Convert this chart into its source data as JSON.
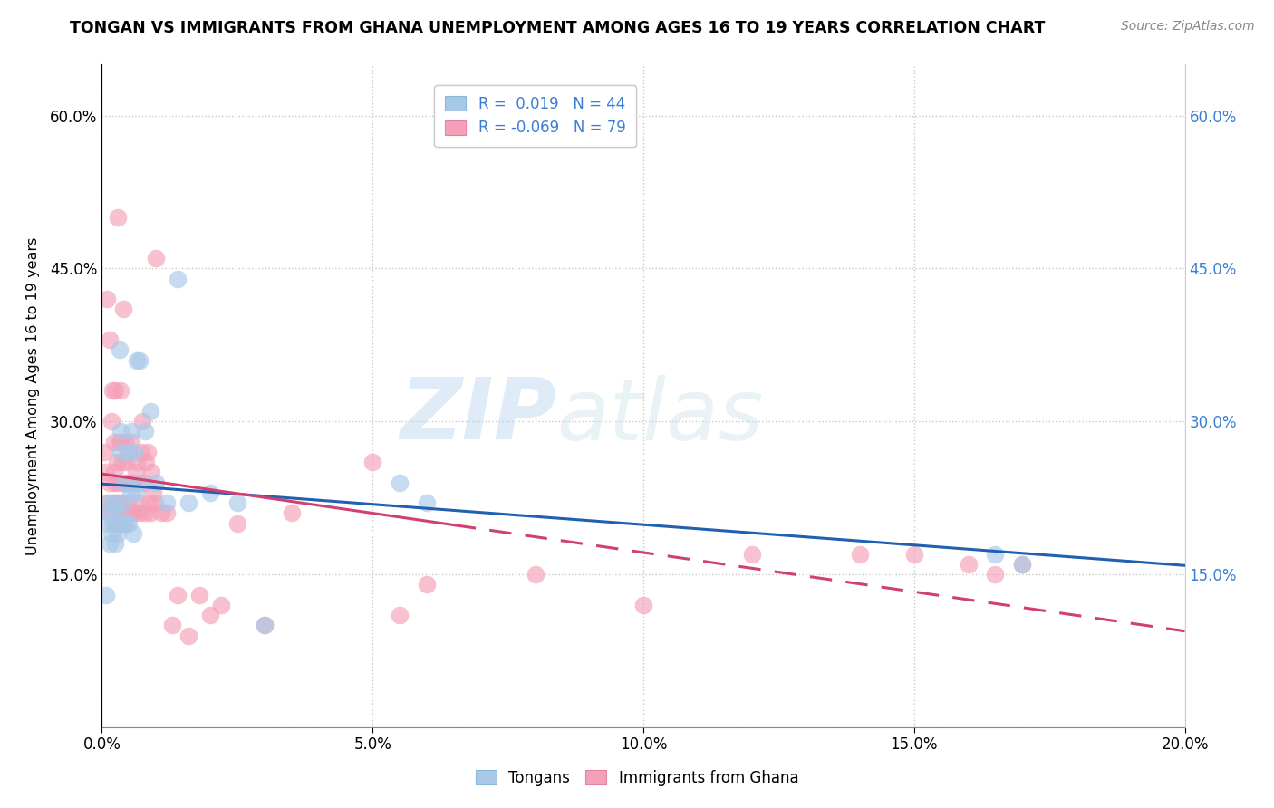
{
  "title": "TONGAN VS IMMIGRANTS FROM GHANA UNEMPLOYMENT AMONG AGES 16 TO 19 YEARS CORRELATION CHART",
  "source": "Source: ZipAtlas.com",
  "ylabel": "Unemployment Among Ages 16 to 19 years",
  "xlim": [
    0.0,
    0.2
  ],
  "ylim": [
    0.0,
    0.65
  ],
  "xticks": [
    0.0,
    0.05,
    0.1,
    0.15,
    0.2
  ],
  "xtick_labels": [
    "0.0%",
    "5.0%",
    "10.0%",
    "15.0%",
    "20.0%"
  ],
  "yticks_left": [
    0.15,
    0.3,
    0.45,
    0.6
  ],
  "ytick_labels_left": [
    "15.0%",
    "30.0%",
    "45.0%",
    "60.0%"
  ],
  "yticks_right": [
    0.15,
    0.3,
    0.45,
    0.6
  ],
  "ytick_labels_right": [
    "15.0%",
    "30.0%",
    "45.0%",
    "60.0%"
  ],
  "watermark_text": "ZIPatlas",
  "tongans_color": "#a8c8e8",
  "ghana_color": "#f4a0b8",
  "tongans_line_color": "#2060b0",
  "ghana_line_color": "#d04070",
  "background_color": "#ffffff",
  "grid_color": "#cccccc",
  "R_tongans": 0.019,
  "N_tongans": 44,
  "R_ghana": -0.069,
  "N_ghana": 79,
  "tongans_x": [
    0.0008,
    0.001,
    0.0012,
    0.0015,
    0.0015,
    0.0018,
    0.002,
    0.0022,
    0.0025,
    0.0025,
    0.0028,
    0.003,
    0.003,
    0.0032,
    0.0035,
    0.0035,
    0.0038,
    0.004,
    0.004,
    0.0042,
    0.0045,
    0.0048,
    0.005,
    0.0052,
    0.0055,
    0.0058,
    0.006,
    0.0062,
    0.0065,
    0.0068,
    0.007,
    0.008,
    0.009,
    0.01,
    0.012,
    0.014,
    0.016,
    0.02,
    0.025,
    0.03,
    0.055,
    0.06,
    0.165,
    0.17
  ],
  "tongans_y": [
    0.13,
    0.2,
    0.22,
    0.18,
    0.21,
    0.19,
    0.2,
    0.22,
    0.18,
    0.2,
    0.21,
    0.19,
    0.2,
    0.37,
    0.27,
    0.29,
    0.2,
    0.2,
    0.22,
    0.24,
    0.2,
    0.27,
    0.2,
    0.23,
    0.29,
    0.19,
    0.27,
    0.23,
    0.36,
    0.24,
    0.36,
    0.29,
    0.31,
    0.24,
    0.22,
    0.44,
    0.22,
    0.23,
    0.22,
    0.1,
    0.24,
    0.22,
    0.17,
    0.16
  ],
  "ghana_x": [
    0.0005,
    0.0008,
    0.001,
    0.001,
    0.0012,
    0.0015,
    0.0015,
    0.0018,
    0.0018,
    0.002,
    0.002,
    0.0022,
    0.0022,
    0.0025,
    0.0025,
    0.0025,
    0.0028,
    0.0028,
    0.003,
    0.003,
    0.0032,
    0.0032,
    0.0035,
    0.0035,
    0.0035,
    0.0038,
    0.0038,
    0.004,
    0.004,
    0.0042,
    0.0042,
    0.0045,
    0.0045,
    0.0048,
    0.005,
    0.005,
    0.0052,
    0.0055,
    0.0055,
    0.0058,
    0.006,
    0.0062,
    0.0065,
    0.0068,
    0.007,
    0.0072,
    0.0075,
    0.0078,
    0.008,
    0.0082,
    0.0085,
    0.0088,
    0.009,
    0.0092,
    0.0095,
    0.0098,
    0.01,
    0.011,
    0.012,
    0.013,
    0.014,
    0.016,
    0.018,
    0.02,
    0.022,
    0.025,
    0.03,
    0.035,
    0.05,
    0.055,
    0.06,
    0.08,
    0.1,
    0.12,
    0.14,
    0.15,
    0.16,
    0.165,
    0.17
  ],
  "ghana_y": [
    0.27,
    0.25,
    0.22,
    0.42,
    0.21,
    0.24,
    0.38,
    0.21,
    0.3,
    0.22,
    0.33,
    0.25,
    0.28,
    0.2,
    0.24,
    0.33,
    0.22,
    0.26,
    0.22,
    0.5,
    0.24,
    0.28,
    0.2,
    0.28,
    0.33,
    0.22,
    0.26,
    0.21,
    0.41,
    0.24,
    0.28,
    0.21,
    0.26,
    0.22,
    0.21,
    0.27,
    0.24,
    0.21,
    0.28,
    0.24,
    0.21,
    0.25,
    0.26,
    0.22,
    0.21,
    0.27,
    0.3,
    0.24,
    0.21,
    0.26,
    0.27,
    0.22,
    0.21,
    0.25,
    0.23,
    0.22,
    0.46,
    0.21,
    0.21,
    0.1,
    0.13,
    0.09,
    0.13,
    0.11,
    0.12,
    0.2,
    0.1,
    0.21,
    0.26,
    0.11,
    0.14,
    0.15,
    0.12,
    0.17,
    0.17,
    0.17,
    0.16,
    0.15,
    0.16
  ]
}
